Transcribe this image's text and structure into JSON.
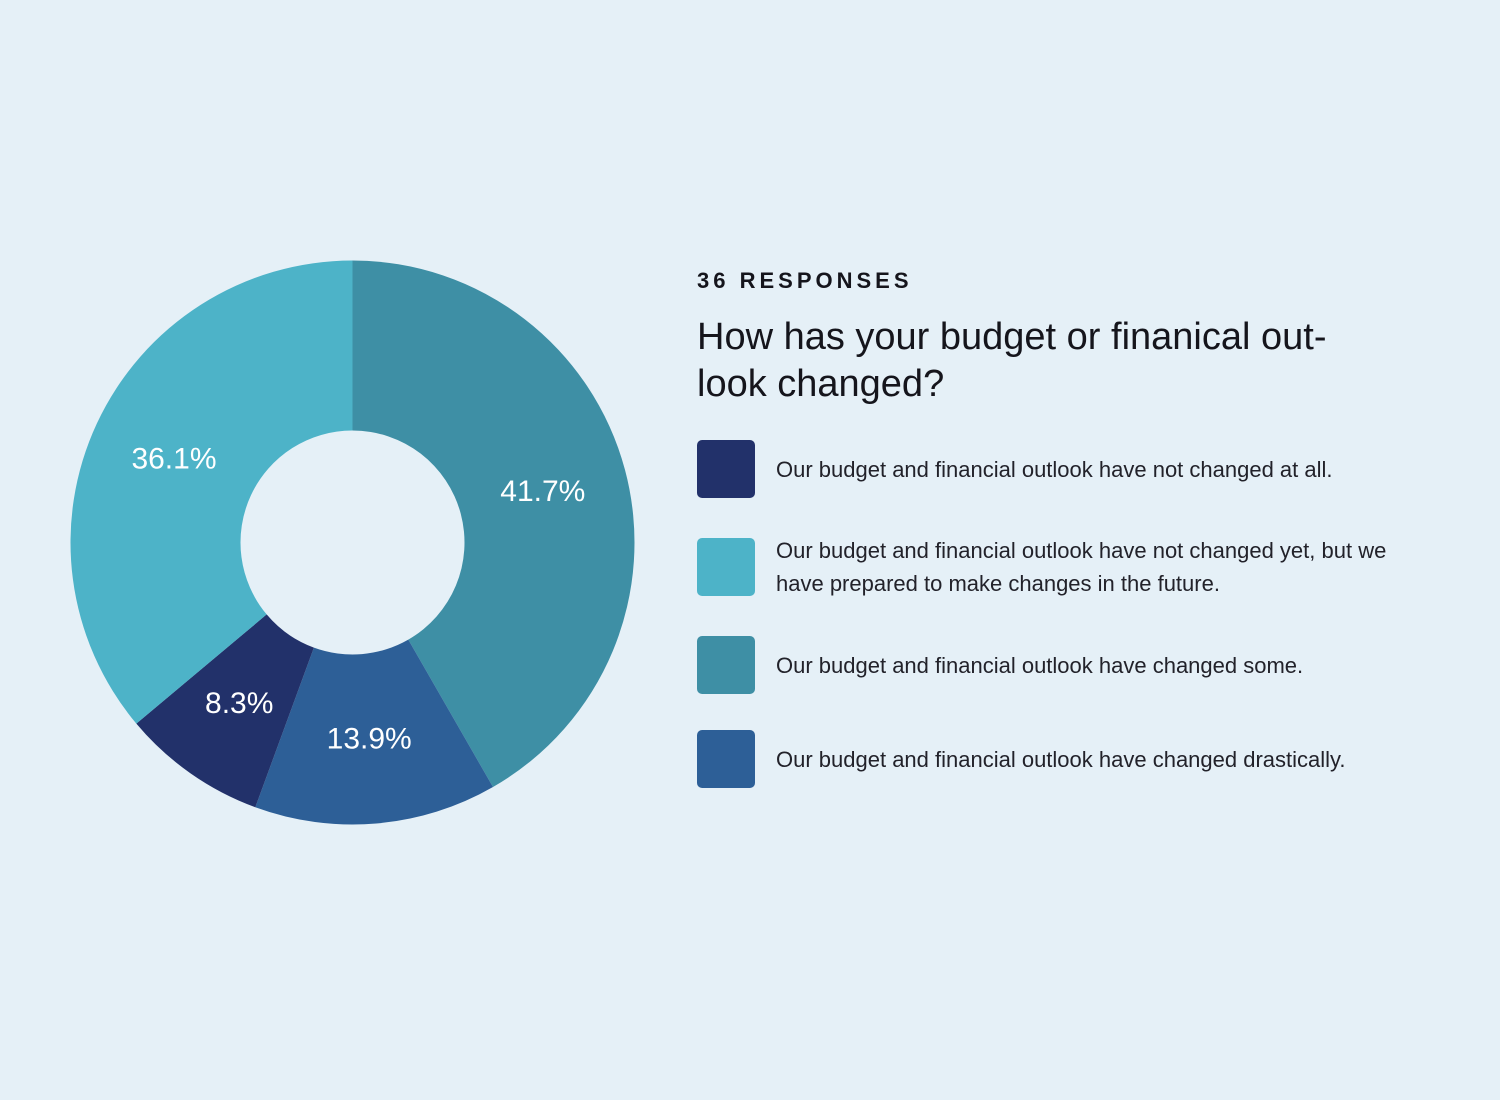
{
  "header": {
    "responses": "36 RESPONSES",
    "question": "How has your budget or finanical out-look changed?"
  },
  "chart_data": {
    "type": "pie",
    "donut": true,
    "start_angle": 0,
    "direction": "clockwise",
    "slices": [
      {
        "label": "Our budget and financial outlook have changed some.",
        "value": 41.7,
        "display": "41.7%",
        "color": "#3e8fa5"
      },
      {
        "label": "Our budget and financial outlook have changed drastically.",
        "value": 13.9,
        "display": "13.9%",
        "color": "#2d5f97"
      },
      {
        "label": "Our budget and financial outlook have not changed at all.",
        "value": 8.3,
        "display": "8.3%",
        "color": "#22316a"
      },
      {
        "label": "Our budget and financial outlook have not changed yet, but we have prepared to make changes in the future.",
        "value": 36.1,
        "display": "36.1%",
        "color": "#4db3c8"
      }
    ]
  },
  "legend": {
    "items": [
      {
        "text": "Our budget and financial outlook have not changed at all.",
        "color": "#22316a"
      },
      {
        "text": "Our budget and financial outlook have not changed yet, but we have prepared to make changes in the future.",
        "color": "#4db3c8"
      },
      {
        "text": "Our budget and financial outlook have changed some.",
        "color": "#3e8fa5"
      },
      {
        "text": "Our budget and financial outlook have changed drastically.",
        "color": "#2d5f97"
      }
    ]
  }
}
